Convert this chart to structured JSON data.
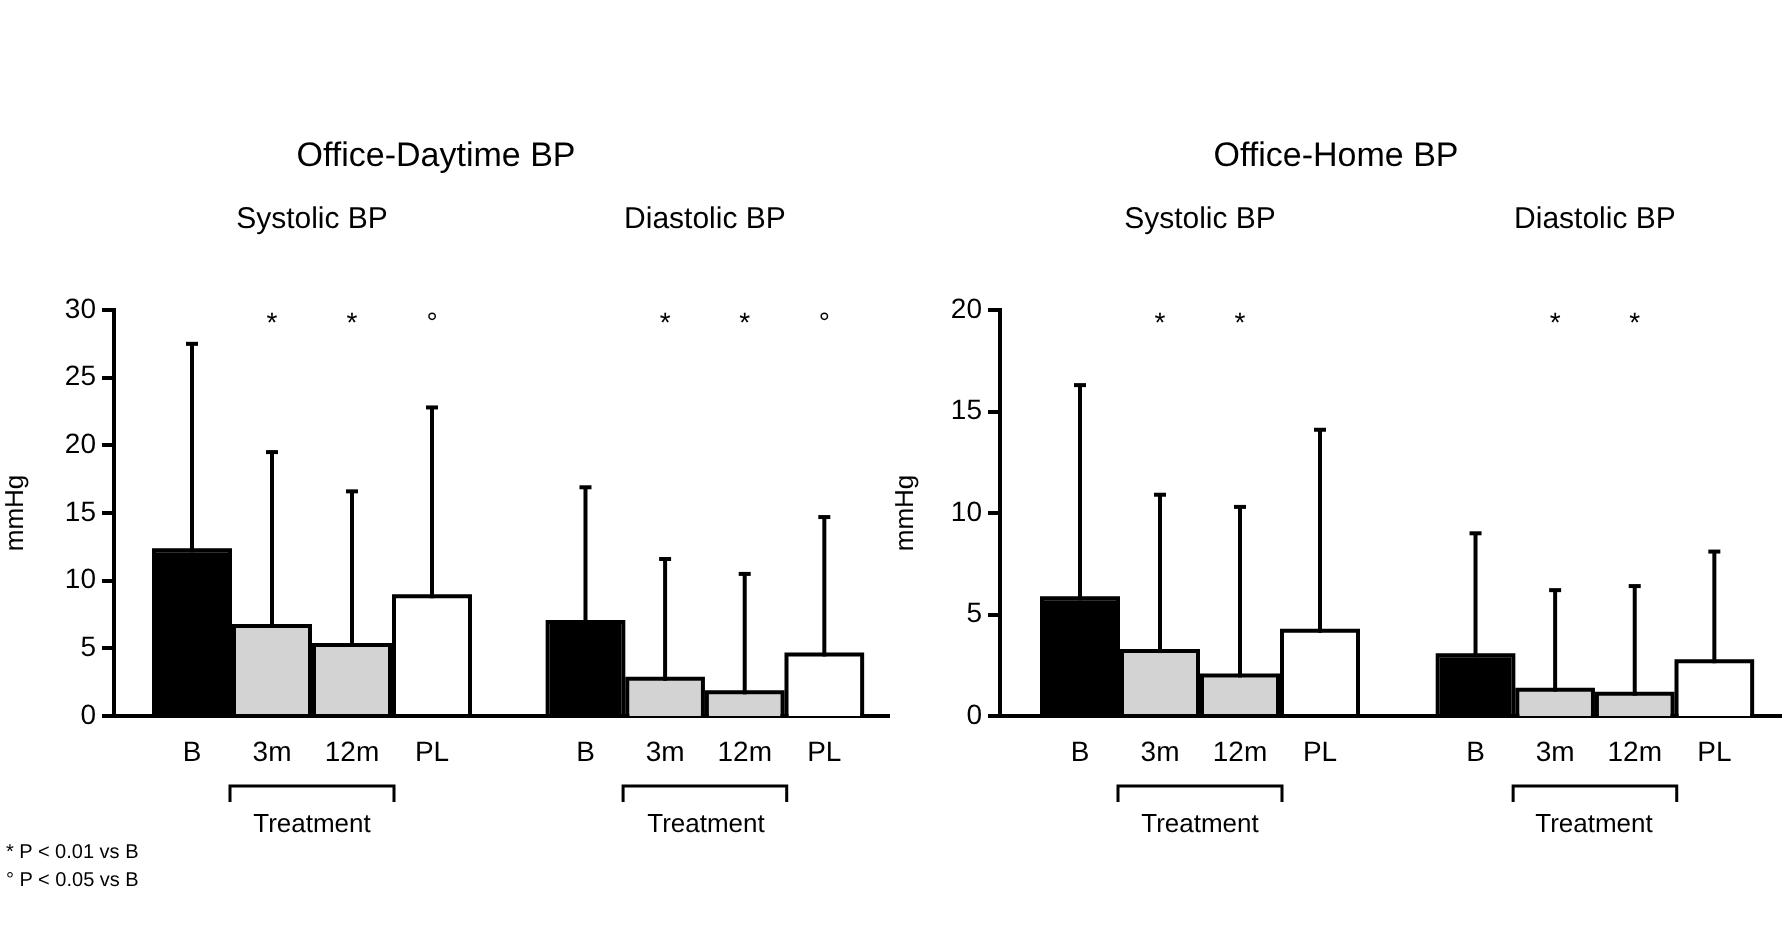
{
  "chart_data": [
    {
      "type": "bar",
      "title": "Systolic BP",
      "ylabel": "mmHg",
      "categories": [
        "B",
        "3m",
        "12m",
        "PL"
      ],
      "values": [
        12.1,
        6.5,
        5.1,
        8.7
      ],
      "colors": [
        "#000000",
        "#d3d3d3",
        "#d3d3d3",
        "#ffffff"
      ],
      "errors": [
        [
          12.1,
          27.5
        ],
        [
          6.5,
          19.5
        ],
        [
          5.1,
          16.6
        ],
        [
          8.7,
          22.8
        ]
      ],
      "ylim": [
        0,
        30
      ],
      "yticks": [
        0,
        5,
        10,
        15,
        20,
        25,
        30
      ],
      "grid": false,
      "legend": false,
      "annotations": [
        "Office-Daytime BP",
        "Treatment",
        "* P < 0.01 vs B",
        "° P < 0.05 vs B",
        "*",
        "*",
        "°"
      ]
    },
    {
      "type": "bar",
      "title": "Diastolic BP",
      "categories": [
        "B",
        "3m",
        "12m",
        "PL"
      ],
      "values": [
        6.8,
        2.6,
        1.6,
        4.4
      ],
      "colors": [
        "#000000",
        "#d3d3d3",
        "#d3d3d3",
        "#ffffff"
      ],
      "errors": [
        [
          6.8,
          16.9
        ],
        [
          2.6,
          11.6
        ],
        [
          1.6,
          10.5
        ],
        [
          4.4,
          14.7
        ]
      ],
      "ylim": [
        0,
        30
      ],
      "tick_labels": "x",
      "grid": false,
      "legend": false,
      "annotations": [
        "Treatment",
        "*",
        "*",
        "°"
      ]
    },
    {
      "type": "bar",
      "title": "Systolic BP",
      "ylabel": "mmHg",
      "categories": [
        "B",
        "3m",
        "12m",
        "PL"
      ],
      "values": [
        5.7,
        3.1,
        1.9,
        4.1
      ],
      "colors": [
        "#000000",
        "#d3d3d3",
        "#d3d3d3",
        "#ffffff"
      ],
      "errors": [
        [
          5.7,
          16.3
        ],
        [
          3.1,
          10.9
        ],
        [
          1.9,
          10.3
        ],
        [
          4.1,
          14.1
        ]
      ],
      "ylim": [
        0,
        20
      ],
      "yticks": [
        0,
        5,
        10,
        15,
        20
      ],
      "grid": false,
      "legend": false,
      "annotations": [
        "Office-Home BP",
        "Treatment",
        "*",
        "*"
      ]
    },
    {
      "type": "bar",
      "title": "Diastolic BP",
      "categories": [
        "B",
        "3m",
        "12m",
        "PL"
      ],
      "values": [
        2.9,
        1.2,
        1.0,
        2.6
      ],
      "colors": [
        "#000000",
        "#d3d3d3",
        "#d3d3d3",
        "#ffffff"
      ],
      "errors": [
        [
          2.9,
          9.0
        ],
        [
          1.2,
          6.2
        ],
        [
          1.0,
          6.4
        ],
        [
          2.6,
          8.1
        ]
      ],
      "ylim": [
        0,
        20
      ],
      "tick_labels": "x",
      "grid": false,
      "legend": false,
      "annotations": [
        "Treatment",
        "*",
        "*"
      ]
    }
  ]
}
